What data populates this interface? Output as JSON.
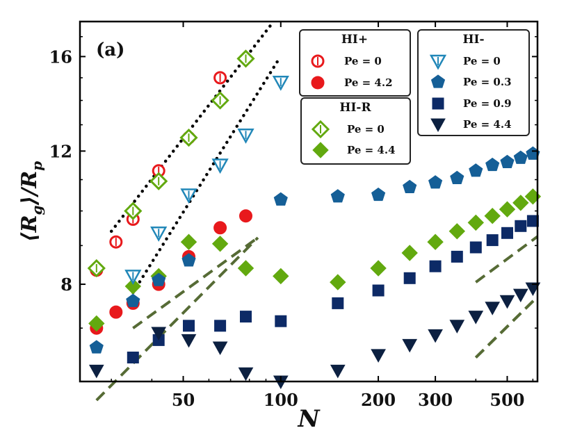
{
  "chart_data": {
    "type": "scatter",
    "panel_label": "(a)",
    "xlabel": "N",
    "ylabel_main": "⟨R",
    "ylabel_main_sub": "g",
    "ylabel_rest": "⟩/R",
    "ylabel_rest_sub": "p",
    "xscale": "log",
    "yscale": "log",
    "xlim": [
      24,
      620
    ],
    "ylim": [
      5.95,
      17.8
    ],
    "xticks": [
      50,
      100,
      200,
      300,
      500
    ],
    "xtick_labels": [
      "50",
      "100",
      "200",
      "300",
      "500"
    ],
    "yticks": [
      8,
      12,
      16
    ],
    "ytick_labels": [
      "8",
      "12",
      "16"
    ],
    "colors": {
      "red": "#e8191c",
      "green": "#62a90f",
      "lightblue": "#2187b8",
      "midblue": "#155f97",
      "navy": "#0d2a66",
      "darknavy": "#0c2041",
      "guide_dotted": "#000000",
      "guide_dashed": "#566b35"
    },
    "series": [
      {
        "name": "HI+ Pe = 0",
        "group": "HI+",
        "label": "Pe = 0",
        "marker": "circle-open",
        "color": "#e8191c",
        "points": [
          [
            27,
            8.35
          ],
          [
            31,
            9.1
          ],
          [
            35,
            9.75
          ],
          [
            42,
            11.3
          ],
          [
            52,
            12.5
          ],
          [
            65,
            15.0
          ]
        ]
      },
      {
        "name": "HI+ Pe = 4.2",
        "group": "HI+",
        "label": "Pe = 4.2",
        "marker": "circle",
        "color": "#e8191c",
        "points": [
          [
            27,
            7.0
          ],
          [
            31,
            7.35
          ],
          [
            35,
            7.55
          ],
          [
            42,
            8.0
          ],
          [
            52,
            8.7
          ],
          [
            65,
            9.5
          ],
          [
            78,
            9.85
          ]
        ]
      },
      {
        "name": "HI-R Pe = 0",
        "group": "HI-R",
        "label": "Pe = 0",
        "marker": "diamond-open",
        "color": "#62a90f",
        "points": [
          [
            27,
            8.4
          ],
          [
            35,
            10.0
          ],
          [
            42,
            10.95
          ],
          [
            52,
            12.5
          ],
          [
            65,
            14.0
          ],
          [
            78,
            15.9
          ]
        ]
      },
      {
        "name": "HI-R Pe = 4.4",
        "group": "HI-R",
        "label": "Pe = 4.4",
        "marker": "diamond",
        "color": "#62a90f",
        "points": [
          [
            27,
            7.1
          ],
          [
            35,
            7.95
          ],
          [
            42,
            8.2
          ],
          [
            52,
            9.1
          ],
          [
            65,
            9.05
          ],
          [
            78,
            8.4
          ],
          [
            100,
            8.2
          ],
          [
            150,
            8.05
          ],
          [
            200,
            8.4
          ],
          [
            250,
            8.8
          ],
          [
            300,
            9.1
          ],
          [
            350,
            9.4
          ],
          [
            400,
            9.65
          ],
          [
            450,
            9.85
          ],
          [
            500,
            10.05
          ],
          [
            550,
            10.25
          ],
          [
            600,
            10.45
          ]
        ]
      },
      {
        "name": "HI- Pe = 0",
        "group": "HI-",
        "label": "Pe = 0",
        "marker": "triangle-down-open",
        "color": "#2187b8",
        "points": [
          [
            35,
            8.2
          ],
          [
            42,
            9.35
          ],
          [
            52,
            10.5
          ],
          [
            65,
            11.5
          ],
          [
            78,
            12.6
          ],
          [
            100,
            14.8
          ]
        ]
      },
      {
        "name": "HI- Pe = 0.3",
        "group": "HI-",
        "label": "Pe = 0.3",
        "marker": "pentagon",
        "color": "#155f97",
        "points": [
          [
            27,
            6.6
          ],
          [
            35,
            7.6
          ],
          [
            42,
            8.1
          ],
          [
            52,
            8.6
          ],
          [
            100,
            10.35
          ],
          [
            150,
            10.45
          ],
          [
            200,
            10.5
          ],
          [
            250,
            10.75
          ],
          [
            300,
            10.9
          ],
          [
            350,
            11.05
          ],
          [
            400,
            11.3
          ],
          [
            450,
            11.5
          ],
          [
            500,
            11.6
          ],
          [
            550,
            11.75
          ],
          [
            600,
            11.9
          ]
        ]
      },
      {
        "name": "HI- Pe = 0.9",
        "group": "HI-",
        "label": "Pe = 0.9",
        "marker": "square",
        "color": "#0d2a66",
        "points": [
          [
            35,
            6.4
          ],
          [
            42,
            6.75
          ],
          [
            52,
            7.05
          ],
          [
            65,
            7.05
          ],
          [
            78,
            7.25
          ],
          [
            100,
            7.15
          ],
          [
            150,
            7.55
          ],
          [
            200,
            7.85
          ],
          [
            250,
            8.15
          ],
          [
            300,
            8.45
          ],
          [
            350,
            8.7
          ],
          [
            400,
            8.95
          ],
          [
            450,
            9.15
          ],
          [
            500,
            9.35
          ],
          [
            550,
            9.55
          ],
          [
            600,
            9.7
          ]
        ]
      },
      {
        "name": "HI- Pe = 4.4",
        "group": "HI-",
        "label": "Pe = 4.4",
        "marker": "triangle-down",
        "color": "#0c2041",
        "points": [
          [
            27,
            6.15
          ],
          [
            42,
            6.9
          ],
          [
            52,
            6.75
          ],
          [
            65,
            6.6
          ],
          [
            78,
            6.1
          ],
          [
            100,
            5.95
          ],
          [
            150,
            6.15
          ],
          [
            200,
            6.45
          ],
          [
            250,
            6.65
          ],
          [
            300,
            6.85
          ],
          [
            350,
            7.05
          ],
          [
            400,
            7.25
          ],
          [
            450,
            7.45
          ],
          [
            500,
            7.6
          ],
          [
            550,
            7.75
          ],
          [
            600,
            7.9
          ]
        ]
      }
    ],
    "guides": [
      {
        "style": "dotted",
        "points": [
          [
            30,
            9.4
          ],
          [
            95,
            17.8
          ]
        ]
      },
      {
        "style": "dotted",
        "points": [
          [
            35,
            7.8
          ],
          [
            98,
            15.8
          ]
        ]
      },
      {
        "style": "dashed",
        "points": [
          [
            27,
            5.62
          ],
          [
            85,
            9.22
          ]
        ]
      },
      {
        "style": "dashed",
        "points": [
          [
            35,
            7.0
          ],
          [
            85,
            9.22
          ]
        ]
      },
      {
        "style": "dashed",
        "points": [
          [
            400,
            8.05
          ],
          [
            620,
            9.25
          ]
        ]
      },
      {
        "style": "dashed",
        "points": [
          [
            400,
            6.4
          ],
          [
            620,
            7.7
          ]
        ]
      },
      {
        "style": "dashed",
        "points": [
          [
            400,
            6.4
          ],
          [
            620,
            7.7
          ]
        ]
      }
    ],
    "legends": [
      {
        "title": "HI+",
        "position": "top-center",
        "entries": [
          {
            "label": "Pe = 0",
            "series": 0
          },
          {
            "label": "Pe = 4.2",
            "series": 1
          }
        ]
      },
      {
        "title": "HI-R",
        "position": "upper-center",
        "entries": [
          {
            "label": "Pe = 0",
            "series": 2
          },
          {
            "label": "Pe = 4.4",
            "series": 3
          }
        ]
      },
      {
        "title": "HI-",
        "position": "top-right",
        "entries": [
          {
            "label": "Pe = 0",
            "series": 4
          },
          {
            "label": "Pe = 0.3",
            "series": 5
          },
          {
            "label": "Pe = 0.9",
            "series": 6
          },
          {
            "label": "Pe = 4.4",
            "series": 7
          }
        ]
      }
    ]
  }
}
